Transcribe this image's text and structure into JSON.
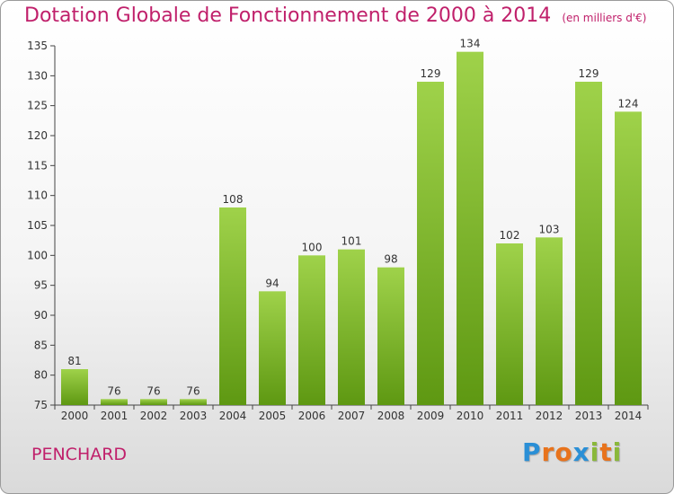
{
  "title": "Dotation Globale de Fonctionnement de 2000 à 2014",
  "unit": "(en milliers d'€)",
  "place": "PENCHARD",
  "logo": {
    "text": "Proxiti",
    "letters": [
      "P",
      "r",
      "o",
      "x",
      "i",
      "t",
      "i"
    ],
    "colors": [
      "#2a8fd6",
      "#e8731c",
      "#e8731c",
      "#2a8fd6",
      "#8ab83a",
      "#e8731c",
      "#8ab83a"
    ]
  },
  "colors": {
    "bar_light": "#9fd24a",
    "bar_dark": "#5e9812",
    "title": "#c0206b"
  },
  "chart_data": {
    "type": "bar",
    "categories": [
      "2000",
      "2001",
      "2002",
      "2003",
      "2004",
      "2005",
      "2006",
      "2007",
      "2008",
      "2009",
      "2010",
      "2011",
      "2012",
      "2013",
      "2014"
    ],
    "values": [
      81,
      76,
      76,
      76,
      108,
      94,
      100,
      101,
      98,
      129,
      134,
      102,
      103,
      129,
      124
    ],
    "yticks": [
      75,
      80,
      85,
      90,
      95,
      100,
      105,
      110,
      115,
      120,
      125,
      130,
      135
    ],
    "ylim": [
      75,
      135
    ],
    "grid": false
  }
}
